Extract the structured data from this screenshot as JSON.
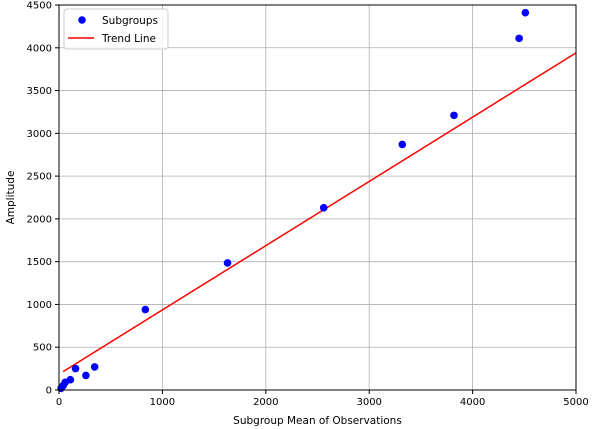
{
  "chart_data": {
    "type": "scatter",
    "xlabel": "Subgroup Mean of Observations",
    "ylabel": "Amplitude",
    "xlim": [
      0,
      5000
    ],
    "ylim": [
      0,
      4500
    ],
    "xticks": [
      0,
      1000,
      2000,
      3000,
      4000,
      5000
    ],
    "yticks": [
      0,
      500,
      1000,
      1500,
      2000,
      2500,
      3000,
      3500,
      4000,
      4500
    ],
    "grid": true,
    "legend": {
      "placement": "top-left",
      "entries": [
        "Subgroups",
        "Trend Line"
      ]
    },
    "series": [
      {
        "name": "Subgroups",
        "kind": "scatter",
        "color": "#0000ff",
        "points": [
          {
            "x": 20,
            "y": 20
          },
          {
            "x": 40,
            "y": 50
          },
          {
            "x": 60,
            "y": 90
          },
          {
            "x": 110,
            "y": 120
          },
          {
            "x": 160,
            "y": 250
          },
          {
            "x": 260,
            "y": 170
          },
          {
            "x": 345,
            "y": 270
          },
          {
            "x": 835,
            "y": 940
          },
          {
            "x": 1630,
            "y": 1485
          },
          {
            "x": 2560,
            "y": 2130
          },
          {
            "x": 3320,
            "y": 2870
          },
          {
            "x": 3820,
            "y": 3210
          },
          {
            "x": 4450,
            "y": 4110
          },
          {
            "x": 4510,
            "y": 4410
          }
        ]
      },
      {
        "name": "Trend Line",
        "kind": "line",
        "color": "#ff0000",
        "points": [
          {
            "x": 40,
            "y": 215
          },
          {
            "x": 5000,
            "y": 3940
          }
        ]
      }
    ]
  }
}
